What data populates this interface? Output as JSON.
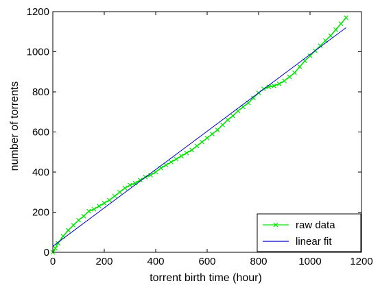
{
  "chart_data": {
    "type": "line",
    "title": "",
    "xlabel": "torrent birth time (hour)",
    "ylabel": "number of torrents",
    "xlim": [
      0,
      1200
    ],
    "ylim": [
      0,
      1200
    ],
    "xticks": [
      0,
      200,
      400,
      600,
      800,
      1000,
      1200
    ],
    "yticks": [
      0,
      200,
      400,
      600,
      800,
      1000,
      1200
    ],
    "grid": false,
    "legend_position": "bottom-right",
    "series": [
      {
        "name": "raw data",
        "color": "#00e600",
        "marker": "x",
        "x": [
          0,
          10,
          20,
          40,
          60,
          80,
          100,
          120,
          140,
          160,
          180,
          200,
          220,
          240,
          260,
          280,
          300,
          320,
          340,
          360,
          380,
          400,
          420,
          440,
          460,
          480,
          500,
          520,
          540,
          560,
          580,
          600,
          620,
          640,
          660,
          680,
          700,
          720,
          740,
          760,
          780,
          800,
          820,
          840,
          860,
          880,
          900,
          920,
          940,
          960,
          980,
          1000,
          1020,
          1040,
          1060,
          1080,
          1100,
          1120,
          1140
        ],
        "y": [
          0,
          20,
          45,
          80,
          110,
          135,
          160,
          180,
          205,
          215,
          230,
          245,
          260,
          280,
          300,
          320,
          335,
          345,
          360,
          375,
          385,
          400,
          420,
          435,
          450,
          465,
          480,
          495,
          510,
          530,
          550,
          570,
          590,
          610,
          635,
          660,
          680,
          705,
          725,
          745,
          770,
          795,
          815,
          825,
          830,
          840,
          855,
          875,
          895,
          925,
          955,
          980,
          1005,
          1030,
          1055,
          1080,
          1110,
          1140,
          1170
        ]
      },
      {
        "name": "linear fit",
        "color": "#0000cc",
        "marker": "",
        "x": [
          0,
          1140
        ],
        "y": [
          30,
          1120
        ]
      }
    ]
  }
}
